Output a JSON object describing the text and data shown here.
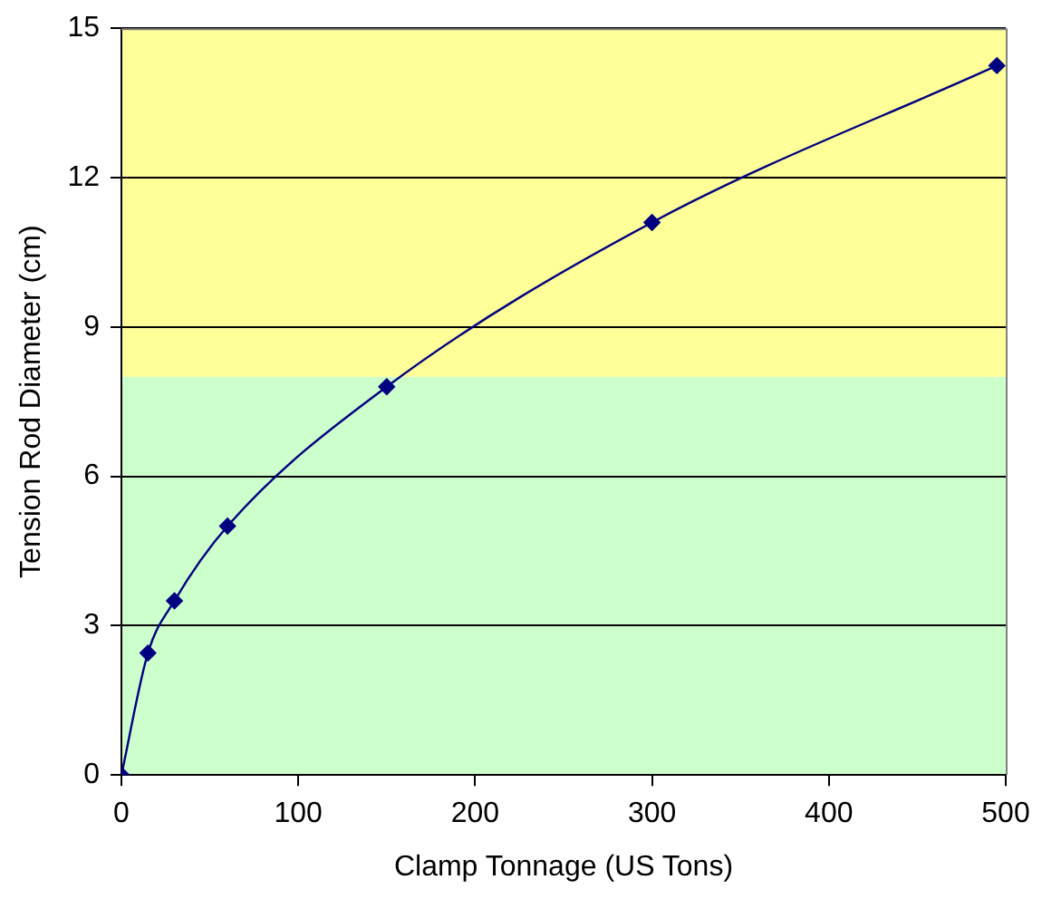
{
  "chart_data": {
    "type": "line",
    "xlabel": "Clamp Tonnage (US Tons)",
    "ylabel": "Tension Rod Diameter (cm)",
    "x": [
      0,
      15,
      30,
      60,
      150,
      300,
      495
    ],
    "series": [
      {
        "color": "#000080",
        "values": [
          0,
          2.45,
          3.5,
          5.0,
          7.8,
          11.1,
          14.25
        ]
      }
    ],
    "xlim": [
      0,
      500
    ],
    "xticks": [
      0,
      100,
      200,
      300,
      400,
      500
    ],
    "ylim": [
      0,
      15
    ],
    "yticks": [
      0,
      3,
      6,
      9,
      12,
      15
    ],
    "grid": "y",
    "legend": false,
    "marker": "diamond",
    "line_style": "solid",
    "bands": [
      {
        "axis": "y",
        "from": 0,
        "to": 8,
        "color": "#ccffcc"
      },
      {
        "axis": "y",
        "from": 8,
        "to": 15,
        "color": "#ffff99"
      }
    ]
  }
}
